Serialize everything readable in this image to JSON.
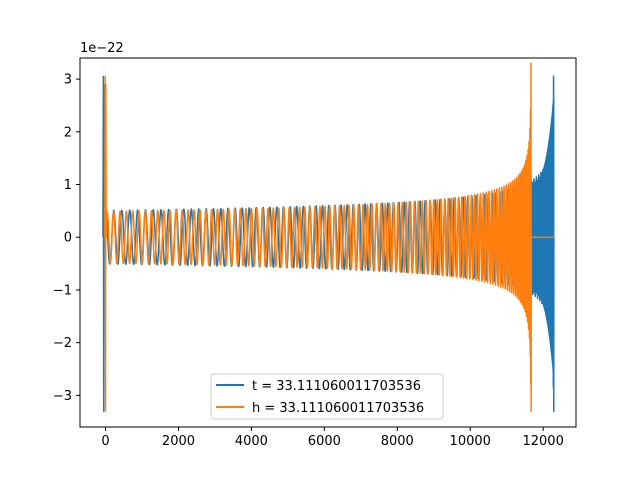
{
  "chart_data": {
    "type": "line",
    "title": "",
    "xlabel": "",
    "ylabel": "",
    "y_offset_label": "1e−22",
    "xlim": [
      -700,
      12900
    ],
    "ylim": [
      -3.6,
      3.4
    ],
    "x_ticks": [
      0,
      2000,
      4000,
      6000,
      8000,
      10000,
      12000
    ],
    "x_tick_labels": [
      "0",
      "2000",
      "4000",
      "6000",
      "8000",
      "10000",
      "12000"
    ],
    "y_ticks": [
      -3,
      -2,
      -1,
      0,
      1,
      2,
      3
    ],
    "y_tick_labels": [
      "−3",
      "−2",
      "−1",
      "0",
      "1",
      "2",
      "3"
    ],
    "grid": false,
    "legend_position": "bottom-center",
    "series": [
      {
        "name": "t = 33.111060011703536",
        "color": "#1f77b4",
        "start": -50,
        "merger": 12290,
        "end": 12300,
        "base_amplitude": 0.55,
        "peak": 3.05,
        "trough": -3.3
      },
      {
        "name": "h = 33.111060011703536",
        "color": "#ff7f0e",
        "start": 0,
        "merger": 11670,
        "end": 12300,
        "base_amplitude": 0.53,
        "peak": 3.05,
        "trough": -3.3
      }
    ]
  }
}
